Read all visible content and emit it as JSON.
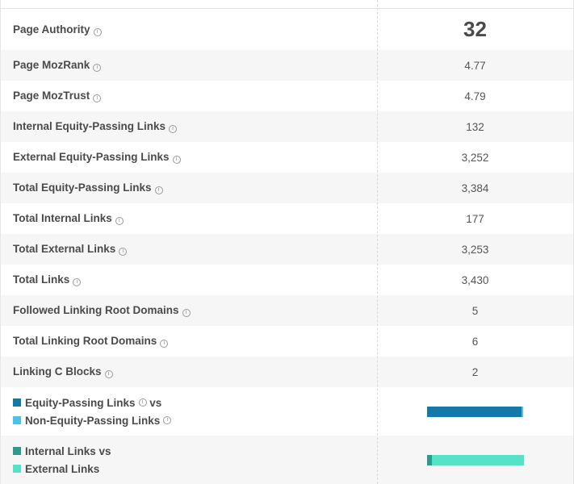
{
  "metrics": [
    {
      "label": "Page Authority",
      "value": "32"
    },
    {
      "label": "Page MozRank",
      "value": "4.77"
    },
    {
      "label": "Page MozTrust",
      "value": "4.79"
    },
    {
      "label": "Internal Equity-Passing Links",
      "value": "132"
    },
    {
      "label": "External Equity-Passing Links",
      "value": "3,252"
    },
    {
      "label": "Total Equity-Passing Links",
      "value": "3,384"
    },
    {
      "label": "Total Internal Links",
      "value": "177"
    },
    {
      "label": "Total External Links",
      "value": "3,253"
    },
    {
      "label": "Total Links",
      "value": "3,430"
    },
    {
      "label": "Followed Linking Root Domains",
      "value": "5"
    },
    {
      "label": "Total Linking Root Domains",
      "value": "6"
    },
    {
      "label": "Linking C Blocks",
      "value": "2"
    }
  ],
  "comparisons": [
    {
      "line1": "Equity-Passing Links",
      "vs": "vs",
      "line2": "Non-Equity-Passing Links",
      "color1": "#1479a6",
      "color2": "#4fc1e9",
      "fraction1": 0.98
    },
    {
      "line1": "Internal Links",
      "vs": "vs",
      "line2": "External Links",
      "color1": "#2c9c8a",
      "color2": "#55e3c8",
      "fraction1": 0.05
    }
  ],
  "icons": {
    "info": "info-icon"
  }
}
